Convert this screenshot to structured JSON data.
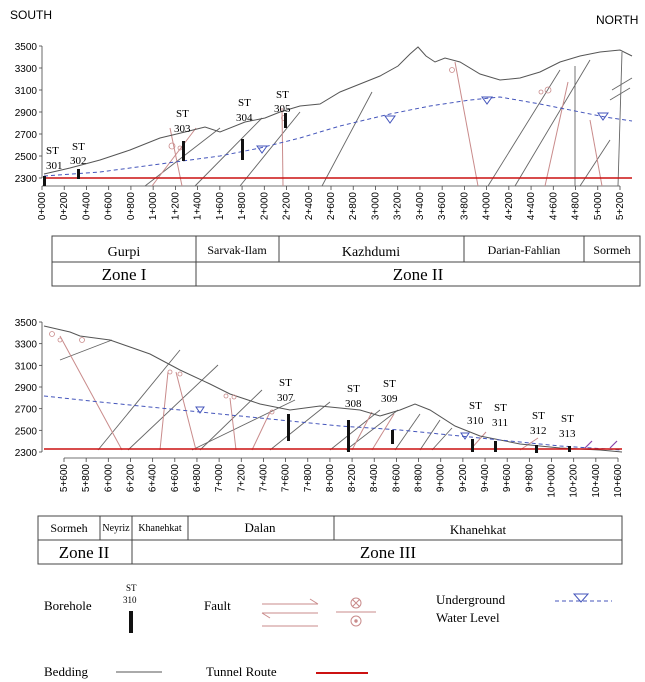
{
  "header": {
    "left": "SOUTH",
    "right": "NORTH"
  },
  "colors": {
    "terrain": "#555555",
    "fault": "#c98b8b",
    "bedding": "#555555",
    "tunnel": "#cc1111",
    "water": "#4455bb",
    "borehole": "#111111",
    "text": "#111111",
    "box": "#444444"
  },
  "section1": {
    "elevations": [
      "3500",
      "3300",
      "3100",
      "2900",
      "2700",
      "2500",
      "2300"
    ],
    "chainages": [
      "0+000",
      "0+200",
      "0+400",
      "0+600",
      "0+800",
      "1+000",
      "1+200",
      "1+400",
      "1+600",
      "1+800",
      "2+000",
      "2+200",
      "2+400",
      "2+600",
      "2+800",
      "3+000",
      "3+200",
      "3+400",
      "3+600",
      "3+800",
      "4+000",
      "4+200",
      "4+400",
      "4+600",
      "4+800",
      "5+000",
      "5+200"
    ],
    "boreholes": [
      {
        "st": "ST",
        "num": "301"
      },
      {
        "st": "ST",
        "num": "302"
      },
      {
        "st": "ST",
        "num": "303"
      },
      {
        "st": "ST",
        "num": "304"
      },
      {
        "st": "ST",
        "num": "305"
      }
    ],
    "formations": [
      "Gurpi",
      "Sarvak-Ilam",
      "Kazhdumi",
      "Darian-Fahlian",
      "Sormeh"
    ],
    "zones": [
      "Zone I",
      "Zone II"
    ]
  },
  "section2": {
    "elevations": [
      "3500",
      "3300",
      "3100",
      "2900",
      "2700",
      "2500",
      "2300"
    ],
    "chainages": [
      "5+600",
      "5+800",
      "6+000",
      "6+200",
      "6+400",
      "6+600",
      "6+800",
      "7+000",
      "7+200",
      "7+400",
      "7+600",
      "7+800",
      "8+000",
      "8+200",
      "8+400",
      "8+600",
      "8+800",
      "9+000",
      "9+200",
      "9+400",
      "9+600",
      "9+800",
      "10+000",
      "10+200",
      "10+400",
      "10+600"
    ],
    "boreholes": [
      {
        "st": "ST",
        "num": "307"
      },
      {
        "st": "ST",
        "num": "308"
      },
      {
        "st": "ST",
        "num": "309"
      },
      {
        "st": "ST",
        "num": "310"
      },
      {
        "st": "ST",
        "num": "311"
      },
      {
        "st": "ST",
        "num": "312"
      },
      {
        "st": "ST",
        "num": "313"
      }
    ],
    "formations": [
      "Sormeh",
      "Neyriz",
      "Khanehkat",
      "Dalan",
      "Khanehkat"
    ],
    "zones": [
      "Zone II",
      "Zone III"
    ]
  },
  "legend": {
    "borehole": "Borehole",
    "borehole_st": "ST",
    "borehole_num": "310",
    "fault": "Fault",
    "water_line1": "Underground",
    "water_line2": "Water Level",
    "bedding": "Bedding",
    "tunnel": "Tunnel Route"
  }
}
